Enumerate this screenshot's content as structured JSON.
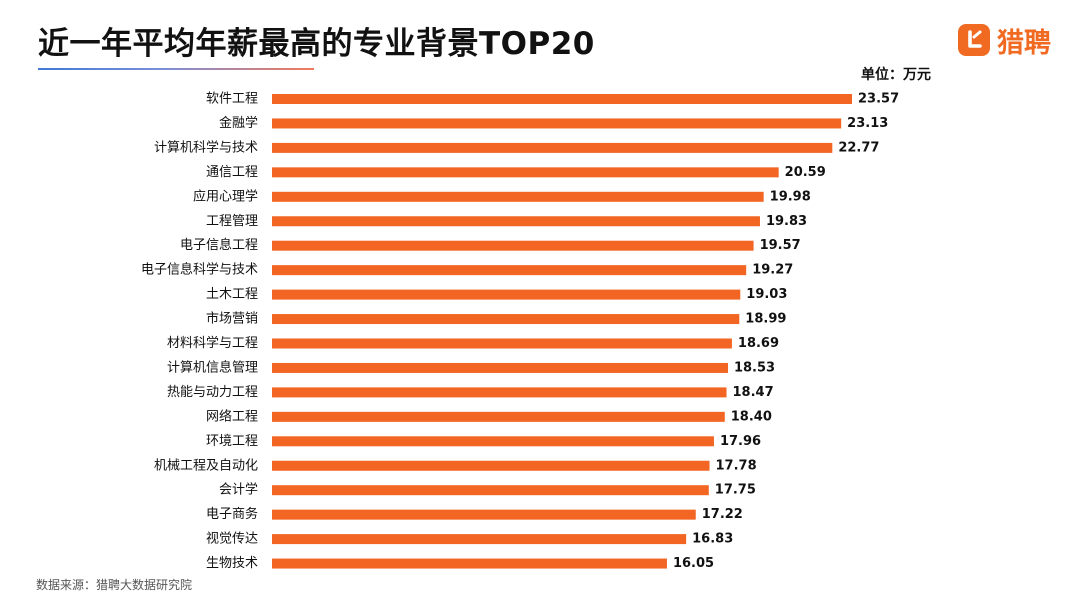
{
  "title": "近一年平均年薪最高的专业背景TOP20",
  "logo": {
    "text": "猎聘",
    "icon": "liepin-logo-icon",
    "color": "#f06a22"
  },
  "unit_label": "单位：万元",
  "source": "数据来源：猎聘大数据研究院",
  "chart_data": {
    "type": "bar",
    "orientation": "horizontal",
    "title": "近一年平均年薪最高的专业背景TOP20",
    "unit": "万元",
    "bar_color": "#f26522",
    "categories": [
      "软件工程",
      "金融学",
      "计算机科学与技术",
      "通信工程",
      "应用心理学",
      "工程管理",
      "电子信息工程",
      "电子信息科学与技术",
      "土木工程",
      "市场营销",
      "材料科学与工程",
      "计算机信息管理",
      "热能与动力工程",
      "网络工程",
      "环境工程",
      "机械工程及自动化",
      "会计学",
      "电子商务",
      "视觉传达",
      "生物技术"
    ],
    "values": [
      23.57,
      23.13,
      22.77,
      20.59,
      19.98,
      19.83,
      19.57,
      19.27,
      19.03,
      18.99,
      18.69,
      18.53,
      18.47,
      18.4,
      17.96,
      17.78,
      17.75,
      17.22,
      16.83,
      16.05
    ],
    "value_labels": [
      "23.57",
      "23.13",
      "22.77",
      "20.59",
      "19.98",
      "19.83",
      "19.57",
      "19.27",
      "19.03",
      "18.99",
      "18.69",
      "18.53",
      "18.47",
      "18.40",
      "17.96",
      "17.78",
      "17.75",
      "17.22",
      "16.83",
      "16.05"
    ],
    "xlim": [
      0,
      23.57
    ],
    "grid": false,
    "legend": "none"
  }
}
